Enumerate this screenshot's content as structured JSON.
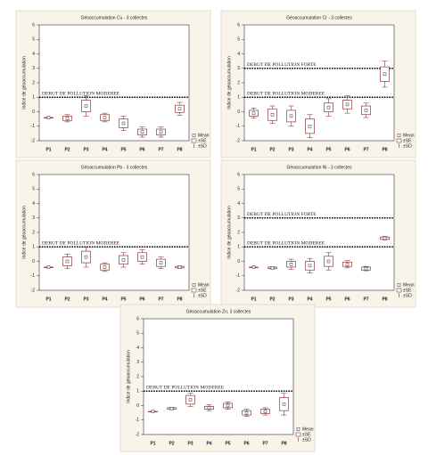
{
  "chart_data": [
    {
      "type": "box",
      "title": "Géoaccumulation Cu - 3 collectes",
      "y_label": "Indice de géoaccumulation",
      "categories": [
        "P1",
        "P2",
        "P3",
        "P4",
        "P5",
        "P6",
        "P7",
        "P8"
      ],
      "mean": [
        -0.4,
        -0.45,
        0.4,
        -0.4,
        -0.8,
        -1.4,
        -1.4,
        0.2
      ],
      "se": [
        0,
        0.15,
        0.4,
        0.2,
        0.3,
        0.2,
        0.2,
        0.25
      ],
      "sd": [
        0,
        0.25,
        0.7,
        0.3,
        0.5,
        0.35,
        0.35,
        0.45
      ],
      "color": "#8b3a3a",
      "ylim": [
        -2,
        6
      ],
      "yticks": [
        -2,
        -1,
        0,
        1,
        2,
        3,
        4,
        5,
        6
      ],
      "annotations": [
        {
          "value": 1,
          "label": "DEBUT DE POLLUTION MODEREE"
        }
      ],
      "legend": [
        "Mean",
        "±SE",
        "±SD"
      ]
    },
    {
      "type": "box",
      "title": "Géoaccumulation Cr - 3 collectes",
      "y_label": "Indice de géoaccumulation",
      "categories": [
        "P1",
        "P2",
        "P3",
        "P4",
        "P5",
        "P6",
        "P7",
        "P8"
      ],
      "mean": [
        -0.1,
        -0.2,
        -0.3,
        -1.0,
        0.3,
        0.5,
        0.1,
        2.6
      ],
      "se": [
        0.2,
        0.4,
        0.4,
        0.5,
        0.3,
        0.3,
        0.3,
        0.5
      ],
      "sd": [
        0.35,
        0.6,
        0.7,
        0.8,
        0.6,
        0.6,
        0.5,
        0.9
      ],
      "color": "#8b3a3a",
      "ylim": [
        -2,
        6
      ],
      "yticks": [
        -2,
        -1,
        0,
        1,
        2,
        3,
        4,
        5,
        6
      ],
      "annotations": [
        {
          "value": 3,
          "label": "DEBUT DE POLLUTION FORTE"
        },
        {
          "value": 1,
          "label": "DEBUT DE POLLUTION MODEREE"
        }
      ],
      "legend": [
        "Mean",
        "±SE",
        "±SD"
      ]
    },
    {
      "type": "box",
      "title": "Géoaccumulation Pb - 3 collectes",
      "y_label": "Indice de géoaccumulation",
      "categories": [
        "P1",
        "P2",
        "P3",
        "P4",
        "P5",
        "P6",
        "P7",
        "P8"
      ],
      "mean": [
        -0.4,
        0.0,
        0.3,
        -0.4,
        0.1,
        0.3,
        -0.1,
        -0.4
      ],
      "se": [
        0,
        0.3,
        0.4,
        0.2,
        0.3,
        0.3,
        0.25,
        0.05
      ],
      "sd": [
        0,
        0.5,
        0.7,
        0.3,
        0.5,
        0.5,
        0.4,
        0.08
      ],
      "color": "#8b3a3a",
      "ylim": [
        -2,
        6
      ],
      "yticks": [
        -2,
        -1,
        0,
        1,
        2,
        3,
        4,
        5,
        6
      ],
      "annotations": [
        {
          "value": 1,
          "label": "DEBUT DE POLLUTION MODEREE"
        }
      ],
      "legend": [
        "Mean",
        "±SE",
        "±SD"
      ]
    },
    {
      "type": "box",
      "title": "Géoaccumulation Ni - 3 collectes",
      "y_label": "Indice de géoaccumulation",
      "categories": [
        "P1",
        "P2",
        "P3",
        "P4",
        "P5",
        "P6",
        "P7",
        "P8"
      ],
      "mean": [
        -0.4,
        -0.45,
        -0.2,
        -0.3,
        0.0,
        -0.2,
        -0.5,
        1.6
      ],
      "se": [
        0,
        0.05,
        0.2,
        0.3,
        0.35,
        0.15,
        0.1,
        0.08
      ],
      "sd": [
        0,
        0.08,
        0.35,
        0.5,
        0.6,
        0.25,
        0.15,
        0.12
      ],
      "color": "#8b3a3a",
      "ylim": [
        -2,
        6
      ],
      "yticks": [
        -2,
        -1,
        0,
        1,
        2,
        3,
        4,
        5,
        6
      ],
      "annotations": [
        {
          "value": 3,
          "label": "DEBUT DE POLLUTION FORTE"
        },
        {
          "value": 1,
          "label": "DEBUT DE POLLUTION MODEREE"
        }
      ],
      "legend": [
        "Mean",
        "±SE",
        "±SD"
      ]
    },
    {
      "type": "box",
      "title": "Géoaccumulation Zn, 3 collectes",
      "y_label": "Indice de géoaccumulation",
      "categories": [
        "P1",
        "P2",
        "P3",
        "P4",
        "P5",
        "P6",
        "P7",
        "P8"
      ],
      "mean": [
        -0.4,
        -0.2,
        0.4,
        -0.15,
        0.0,
        -0.5,
        -0.4,
        0.1
      ],
      "se": [
        0,
        0.05,
        0.3,
        0.1,
        0.15,
        0.15,
        0.15,
        0.45
      ],
      "sd": [
        0,
        0.08,
        0.45,
        0.2,
        0.25,
        0.25,
        0.25,
        0.75
      ],
      "color": "#8b3a3a",
      "ylim": [
        -2,
        6
      ],
      "yticks": [
        -2,
        -1,
        0,
        1,
        2,
        3,
        4,
        5,
        6
      ],
      "annotations": [
        {
          "value": 1,
          "label": "DEBUT DE POLLUTION MODEREE"
        }
      ],
      "legend": [
        "Mean",
        "±SE",
        "±SD"
      ]
    }
  ]
}
